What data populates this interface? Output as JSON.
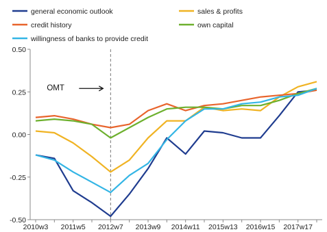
{
  "chart_data": {
    "type": "line",
    "categories": [
      "2010w3",
      "2010w4",
      "2011w5",
      "2011w6",
      "2012w7",
      "2012w8",
      "2013w9",
      "2013w10",
      "2014w11",
      "2014w12",
      "2015w13",
      "2015w14",
      "2016w15",
      "2016w16",
      "2017w17",
      "2017w18"
    ],
    "x_tick_labels": [
      "2010w3",
      "2011w5",
      "2012w7",
      "2013w9",
      "2014w11",
      "2015w13",
      "2016w15",
      "2017w17"
    ],
    "series": [
      {
        "name": "general economic outlook",
        "color": "#1f3c8f",
        "values": [
          -0.12,
          -0.14,
          -0.33,
          -0.4,
          -0.48,
          -0.35,
          -0.2,
          -0.02,
          -0.115,
          0.02,
          0.01,
          -0.02,
          -0.02,
          0.11,
          0.25,
          0.26
        ]
      },
      {
        "name": "sales & profits",
        "color": "#f0b323",
        "values": [
          0.02,
          0.01,
          -0.05,
          -0.13,
          -0.22,
          -0.15,
          -0.02,
          0.08,
          0.08,
          0.16,
          0.14,
          0.15,
          0.14,
          0.22,
          0.28,
          0.31
        ]
      },
      {
        "name": "credit history",
        "color": "#e8642c",
        "values": [
          0.1,
          0.11,
          0.09,
          0.06,
          0.04,
          0.06,
          0.14,
          0.18,
          0.14,
          0.17,
          0.18,
          0.2,
          0.22,
          0.23,
          0.24,
          0.26
        ]
      },
      {
        "name": "own capital",
        "color": "#6db02e",
        "values": [
          0.08,
          0.09,
          0.08,
          0.06,
          -0.02,
          0.04,
          0.1,
          0.15,
          0.16,
          0.16,
          0.15,
          0.17,
          0.17,
          0.2,
          0.24,
          0.27
        ]
      },
      {
        "name": "willingness of banks to provide credit",
        "color": "#33b5e5",
        "values": [
          -0.12,
          -0.15,
          -0.22,
          -0.28,
          -0.34,
          -0.24,
          -0.17,
          -0.03,
          0.08,
          0.15,
          0.15,
          0.18,
          0.19,
          0.22,
          0.23,
          0.27
        ]
      }
    ],
    "y_ticks": [
      "0.50",
      "0.25",
      "0.00",
      "-0.25",
      "-0.50"
    ],
    "ylim": [
      -0.5,
      0.5
    ],
    "annotation": {
      "label": "OMT",
      "at_category": "2012w7"
    },
    "legend_position": "top",
    "grid": false
  }
}
